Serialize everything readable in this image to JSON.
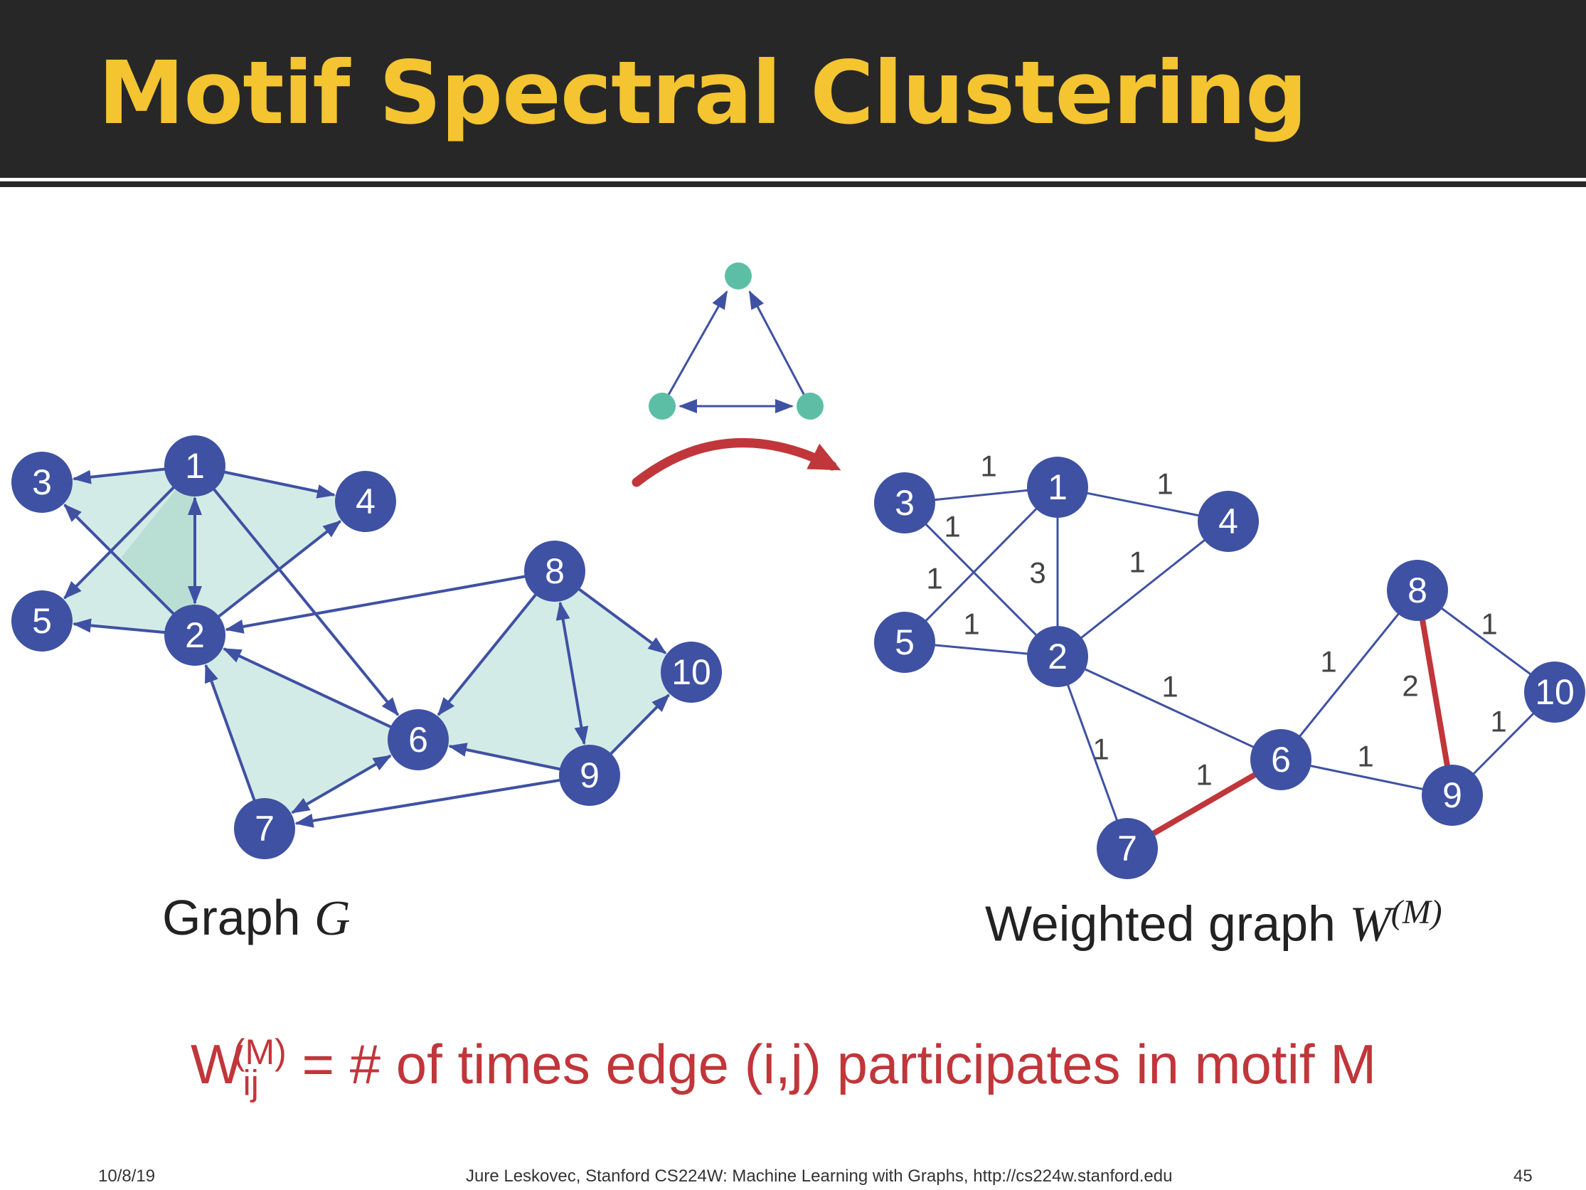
{
  "slide": {
    "title": "Motif Spectral Clustering",
    "footer_date": "10/8/19",
    "footer_credit": "Jure Leskovec, Stanford CS224W: Machine Learning with Graphs, http://cs224w.stanford.edu",
    "page_number": "45"
  },
  "graph_g": {
    "caption_text": "Graph ",
    "caption_symbol": "G",
    "node_color": "#3f51a3",
    "edge_color": "#3f51a3",
    "motif_fill": "#d3ebe6",
    "nodes": [
      {
        "id": "1",
        "label": "1"
      },
      {
        "id": "2",
        "label": "2"
      },
      {
        "id": "3",
        "label": "3"
      },
      {
        "id": "4",
        "label": "4"
      },
      {
        "id": "5",
        "label": "5"
      },
      {
        "id": "6",
        "label": "6"
      },
      {
        "id": "7",
        "label": "7"
      },
      {
        "id": "8",
        "label": "8"
      },
      {
        "id": "9",
        "label": "9"
      },
      {
        "id": "10",
        "label": "10"
      }
    ]
  },
  "motif": {
    "node_color": "#5cbfa5",
    "arrow_color": "#c0363a"
  },
  "weighted_graph": {
    "caption_text": "Weighted graph ",
    "caption_symbol": "W",
    "caption_superscript": "(M)",
    "highlight_color": "#c0363a",
    "weights": {
      "e1_3": "1",
      "e1_4": "1",
      "e1_2": "3",
      "e1_5": "1",
      "e3_2": "1",
      "e5_2": "1",
      "e2_4": "1",
      "e2_6": "1",
      "e2_7": "1",
      "e7_6": "1",
      "e6_8": "1",
      "e6_9": "1",
      "e8_9": "2",
      "e8_10": "1",
      "e10_9": "1"
    }
  },
  "formula": {
    "w": "W",
    "sub": "ij",
    "sup": "(M)",
    "text": " = # of times edge (i,j) participates in motif M"
  }
}
